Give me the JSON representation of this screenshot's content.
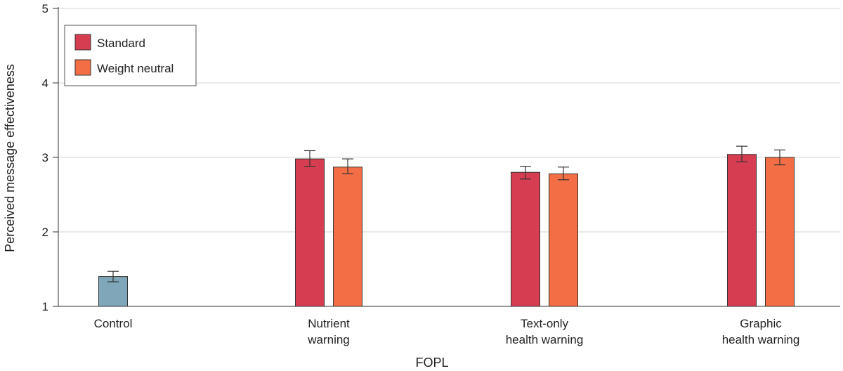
{
  "chart_data": {
    "type": "bar",
    "title": "",
    "xlabel": "FOPL",
    "ylabel": "Perceived message effectiveness",
    "ylim": [
      1,
      5
    ],
    "yticks": [
      "1",
      "2",
      "3",
      "4",
      "5"
    ],
    "grid": "horizontal",
    "legend_position": "top-left",
    "categories": [
      {
        "lines": [
          "Control"
        ]
      },
      {
        "lines": [
          "Nutrient",
          "warning"
        ]
      },
      {
        "lines": [
          "Text-only",
          "health warning"
        ]
      },
      {
        "lines": [
          "Graphic",
          "health warning"
        ]
      }
    ],
    "legend": [
      {
        "name": "Standard",
        "color": "#d63d50"
      },
      {
        "name": "Weight neutral",
        "color": "#f36e45"
      }
    ],
    "bars": [
      {
        "category": 0,
        "series": "Control",
        "value": 1.4,
        "err_low": 1.33,
        "err_high": 1.47,
        "color": "#7fa6b9"
      },
      {
        "category": 1,
        "series": "Standard",
        "value": 2.98,
        "err_low": 2.88,
        "err_high": 3.09,
        "color": "#d63d50"
      },
      {
        "category": 1,
        "series": "Weight neutral",
        "value": 2.87,
        "err_low": 2.78,
        "err_high": 2.98,
        "color": "#f36e45"
      },
      {
        "category": 2,
        "series": "Standard",
        "value": 2.8,
        "err_low": 2.71,
        "err_high": 2.88,
        "color": "#d63d50"
      },
      {
        "category": 2,
        "series": "Weight neutral",
        "value": 2.78,
        "err_low": 2.7,
        "err_high": 2.87,
        "color": "#f36e45"
      },
      {
        "category": 3,
        "series": "Standard",
        "value": 3.04,
        "err_low": 2.94,
        "err_high": 3.15,
        "color": "#d63d50"
      },
      {
        "category": 3,
        "series": "Weight neutral",
        "value": 3.0,
        "err_low": 2.9,
        "err_high": 3.1,
        "color": "#f36e45"
      }
    ]
  }
}
